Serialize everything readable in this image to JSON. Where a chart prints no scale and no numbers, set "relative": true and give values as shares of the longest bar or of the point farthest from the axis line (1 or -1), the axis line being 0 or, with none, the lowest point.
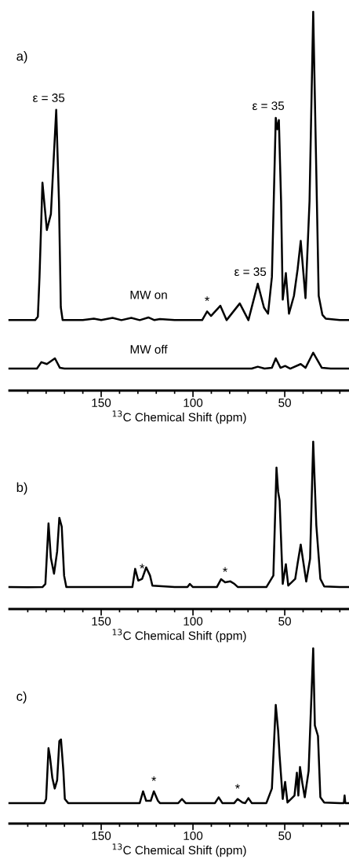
{
  "chart_data": [
    {
      "type": "line",
      "title": "a)",
      "relative": true,
      "xlabel": "$^{13}$C Chemical Shift (ppm)",
      "xlim": [
        200,
        15
      ],
      "tick_labels": "x",
      "grid": false,
      "legend": false,
      "marker": "none",
      "line_style": "solid",
      "xticks": [
        {
          "value": 190,
          "label": null
        },
        {
          "value": 180,
          "label": null
        },
        {
          "value": 170,
          "label": null
        },
        {
          "value": 160,
          "label": null
        },
        150,
        {
          "value": 140,
          "label": null
        },
        {
          "value": 130,
          "label": null
        },
        {
          "value": 120,
          "label": null
        },
        {
          "value": 110,
          "label": null
        },
        100,
        {
          "value": 90,
          "label": null
        },
        {
          "value": 80,
          "label": null
        },
        {
          "value": 70,
          "label": null
        },
        {
          "value": 60,
          "label": null
        },
        50,
        {
          "value": 40,
          "label": null
        },
        {
          "value": 30,
          "label": null
        },
        {
          "value": 20,
          "label": null
        }
      ],
      "series": [
        {
          "name": "MW on",
          "color": "#000000",
          "x": [
            200,
            186,
            184.5,
            183.6,
            182,
            179.6,
            177.4,
            176,
            174.5,
            173,
            172,
            171,
            160,
            154,
            150,
            143.8,
            139,
            133.6,
            129,
            124.3,
            121,
            118,
            110,
            95,
            92.3,
            90.2,
            85.1,
            81.7,
            74.5,
            69.8,
            64.7,
            61.3,
            59.1,
            57,
            54.9,
            54.1,
            53.2,
            52,
            51.1,
            49.4,
            47.7,
            45,
            43,
            41.3,
            38.7,
            36.5,
            34.5,
            32.5,
            31.5,
            29.5,
            27.7,
            20,
            15
          ],
          "values": [
            0.186,
            0.186,
            0.195,
            0.3,
            0.549,
            0.424,
            0.466,
            0.6,
            0.741,
            0.5,
            0.22,
            0.186,
            0.186,
            0.19,
            0.186,
            0.192,
            0.186,
            0.192,
            0.186,
            0.193,
            0.186,
            0.189,
            0.186,
            0.186,
            0.209,
            0.197,
            0.224,
            0.186,
            0.23,
            0.186,
            0.282,
            0.219,
            0.203,
            0.3,
            0.72,
            0.69,
            0.714,
            0.5,
            0.24,
            0.31,
            0.203,
            0.25,
            0.32,
            0.395,
            0.244,
            0.5,
            1.0,
            0.5,
            0.25,
            0.2,
            0.19,
            0.186,
            0.186
          ]
        },
        {
          "name": "MW off",
          "color": "#000000",
          "x": [
            200,
            185,
            182.6,
            179.6,
            175.2,
            172.5,
            170,
            100,
            68,
            64.7,
            61,
            57,
            54.9,
            52.3,
            49.8,
            47,
            41.3,
            38.7,
            34.5,
            29.8,
            25,
            15
          ],
          "values": [
            0.058,
            0.058,
            0.075,
            0.07,
            0.085,
            0.06,
            0.058,
            0.058,
            0.058,
            0.063,
            0.058,
            0.06,
            0.085,
            0.06,
            0.065,
            0.058,
            0.07,
            0.06,
            0.1,
            0.06,
            0.058,
            0.058
          ]
        }
      ],
      "annotations": [
        {
          "text": "ε = 35",
          "x": 174.5,
          "y": 0.741
        },
        {
          "text": "ε = 35",
          "x": 54.9,
          "y": 0.72
        },
        {
          "text": "ε = 35",
          "x": 64.7,
          "y": 0.282
        },
        {
          "text": "*",
          "x": 92.3,
          "y": 0.209
        }
      ]
    },
    {
      "type": "line",
      "title": "b)",
      "relative": true,
      "xlabel": "$^{13}$C Chemical Shift (ppm)",
      "xlim": [
        200,
        15
      ],
      "tick_labels": "x",
      "grid": false,
      "legend": false,
      "marker": "none",
      "line_style": "solid",
      "xticks": [
        {
          "value": 190,
          "label": null
        },
        {
          "value": 180,
          "label": null
        },
        {
          "value": 170,
          "label": null
        },
        {
          "value": 160,
          "label": null
        },
        150,
        {
          "value": 140,
          "label": null
        },
        {
          "value": 130,
          "label": null
        },
        {
          "value": 120,
          "label": null
        },
        {
          "value": 110,
          "label": null
        },
        100,
        {
          "value": 90,
          "label": null
        },
        {
          "value": 80,
          "label": null
        },
        {
          "value": 70,
          "label": null
        },
        {
          "value": 60,
          "label": null
        },
        50,
        {
          "value": 40,
          "label": null
        },
        {
          "value": 30,
          "label": null
        },
        {
          "value": 20,
          "label": null
        }
      ],
      "series": [
        {
          "color": "#000000",
          "x": [
            200,
            190,
            182,
            180.4,
            178.7,
            177.4,
            175.7,
            174,
            172.8,
            171.5,
            170.2,
            169,
            150,
            133,
            131.5,
            129.8,
            127.7,
            125.5,
            123.4,
            122.1,
            110,
            103,
            101.7,
            100,
            87,
            84.7,
            82.5,
            79.6,
            77.4,
            75.5,
            60,
            56.2,
            54.5,
            53.6,
            52.8,
            51.1,
            49.4,
            48.1,
            44.3,
            43,
            41.3,
            38.3,
            36.2,
            34.5,
            32.8,
            30.6,
            28.5,
            20,
            15
          ],
          "values": [
            0.131,
            0.13,
            0.131,
            0.15,
            0.512,
            0.305,
            0.211,
            0.343,
            0.545,
            0.493,
            0.2,
            0.131,
            0.131,
            0.131,
            0.24,
            0.17,
            0.18,
            0.249,
            0.2,
            0.14,
            0.131,
            0.131,
            0.15,
            0.131,
            0.131,
            0.178,
            0.16,
            0.165,
            0.15,
            0.131,
            0.131,
            0.2,
            0.845,
            0.7,
            0.648,
            0.15,
            0.268,
            0.14,
            0.18,
            0.272,
            0.385,
            0.164,
            0.3,
            1.0,
            0.5,
            0.18,
            0.135,
            0.131,
            0.131
          ]
        }
      ],
      "annotations": [
        {
          "text": "*",
          "x": 127.7,
          "y": 0.18
        },
        {
          "text": "*",
          "x": 82.5,
          "y": 0.16
        }
      ]
    },
    {
      "type": "line",
      "title": "c)",
      "relative": true,
      "xlabel": "$^{13}$C Chemical Shift (ppm)",
      "xlim": [
        200,
        15
      ],
      "tick_labels": "x",
      "grid": false,
      "legend": false,
      "marker": "none",
      "line_style": "solid",
      "xticks": [
        {
          "value": 190,
          "label": null
        },
        {
          "value": 180,
          "label": null
        },
        {
          "value": 170,
          "label": null
        },
        {
          "value": 160,
          "label": null
        },
        150,
        {
          "value": 140,
          "label": null
        },
        {
          "value": 130,
          "label": null
        },
        {
          "value": 120,
          "label": null
        },
        {
          "value": 110,
          "label": null
        },
        100,
        {
          "value": 90,
          "label": null
        },
        {
          "value": 80,
          "label": null
        },
        {
          "value": 70,
          "label": null
        },
        {
          "value": 60,
          "label": null
        },
        50,
        {
          "value": 40,
          "label": null
        },
        {
          "value": 30,
          "label": null
        },
        {
          "value": 20,
          "label": null
        }
      ],
      "series": [
        {
          "color": "#000000",
          "x": [
            200,
            190,
            181,
            180,
            178.7,
            177.9,
            176.6,
            175.3,
            174,
            172.8,
            171.9,
            170.6,
            169.8,
            168,
            150,
            129,
            127.2,
            125.5,
            123,
            121.3,
            119.1,
            118,
            108,
            106,
            104,
            88,
            86,
            84,
            77.5,
            75.7,
            73,
            71.5,
            69.8,
            68,
            60,
            57,
            54.9,
            53.6,
            52.8,
            51.1,
            49.8,
            48.5,
            44.7,
            43.4,
            42.6,
            41.7,
            40.4,
            39.1,
            37,
            34.5,
            33.6,
            31.9,
            30.6,
            28.5,
            20,
            17.8,
            17.4,
            17,
            15
          ],
          "values": [
            0.117,
            0.117,
            0.117,
            0.14,
            0.43,
            0.381,
            0.26,
            0.2,
            0.247,
            0.47,
            0.48,
            0.3,
            0.14,
            0.117,
            0.117,
            0.117,
            0.184,
            0.13,
            0.13,
            0.184,
            0.13,
            0.117,
            0.117,
            0.14,
            0.117,
            0.117,
            0.15,
            0.117,
            0.117,
            0.14,
            0.12,
            0.117,
            0.145,
            0.117,
            0.117,
            0.2,
            0.677,
            0.53,
            0.386,
            0.14,
            0.238,
            0.12,
            0.16,
            0.29,
            0.16,
            0.323,
            0.23,
            0.15,
            0.3,
            1.0,
            0.56,
            0.5,
            0.15,
            0.12,
            0.117,
            0.117,
            0.16,
            0.117,
            0.117
          ]
        }
      ],
      "annotations": [
        {
          "text": "*",
          "x": 121.3,
          "y": 0.184
        },
        {
          "text": "*",
          "x": 75.7,
          "y": 0.14
        }
      ]
    }
  ]
}
